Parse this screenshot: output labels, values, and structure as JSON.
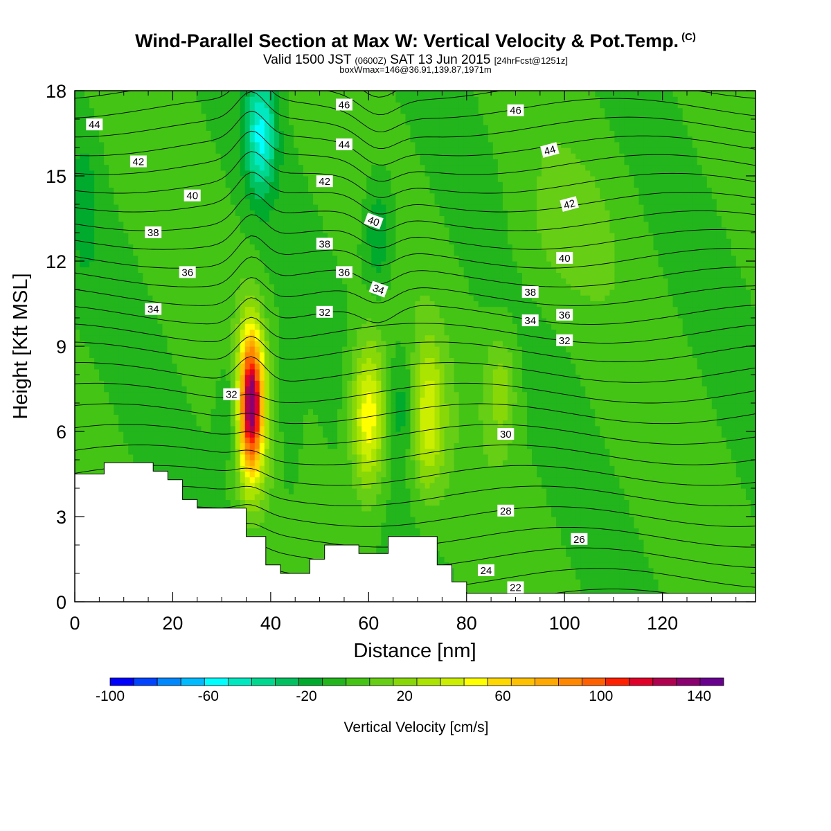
{
  "header": {
    "title": "Wind-Parallel Section at Max W: Vertical Velocity & Pot.Temp.",
    "copyright": "(C)",
    "valid_pre": "Valid 1500 JST",
    "valid_utc": "(0600Z)",
    "valid_date": "SAT 13 Jun 2015",
    "forecast": "[24hrFcst@1251z]",
    "boxwmax": "boxWmax=146@36.91,139.87,1971m"
  },
  "chart_data": {
    "type": "heatmap",
    "title": "Wind-Parallel Section at Max W: Vertical Velocity & Pot.Temp.",
    "xlabel": "Distance [nm]",
    "ylabel": "Height [Kft MSL]",
    "xlim": [
      0,
      139
    ],
    "ylim": [
      0,
      18
    ],
    "x_ticks": [
      "0",
      "20",
      "40",
      "60",
      "80",
      "100",
      "120"
    ],
    "y_ticks": [
      "0",
      "3",
      "6",
      "9",
      "12",
      "15",
      "18"
    ],
    "colorbar": {
      "label": "Vertical Velocity [cm/s]",
      "range": [
        -100,
        150
      ],
      "step": 10,
      "tick_labels": [
        "-100",
        "-60",
        "-20",
        "20",
        "60",
        "100",
        "140"
      ],
      "colors": [
        "#0000ff",
        "#0044ff",
        "#0088ff",
        "#00bbff",
        "#00ffff",
        "#00e8c0",
        "#00d890",
        "#00c060",
        "#00aa2c",
        "#22b51c",
        "#44c414",
        "#66ce14",
        "#88d808",
        "#aae400",
        "#ccee00",
        "#ffff00",
        "#ffd800",
        "#ffc000",
        "#ffa800",
        "#ff8800",
        "#ff6000",
        "#ff2000",
        "#e0002a",
        "#b00050",
        "#8a0070",
        "#6a0090"
      ]
    },
    "vertical_velocity_max": 146,
    "wmax_location": "36.91,139.87,1971m",
    "features": [
      {
        "name": "updraft",
        "x": 36,
        "z": 7.0,
        "w": 146
      },
      {
        "name": "updraft",
        "x": 60,
        "z": 6.5,
        "w": 60
      },
      {
        "name": "updraft",
        "x": 72,
        "z": 6.5,
        "w": 45
      },
      {
        "name": "updraft",
        "x": 87,
        "z": 7.5,
        "w": 25
      },
      {
        "name": "downdraft",
        "x": 38,
        "z": 16.5,
        "w": -50
      },
      {
        "name": "downdraft",
        "x": 62,
        "z": 13.0,
        "w": -25
      },
      {
        "name": "downdraft",
        "x": 67,
        "z": 7.0,
        "w": -20
      },
      {
        "name": "downdraft",
        "x": 32,
        "z": 7.0,
        "w": -15
      }
    ],
    "theta_contour_labels": [
      {
        "text": "44",
        "x": 4,
        "z": 16.8
      },
      {
        "text": "42",
        "x": 13,
        "z": 15.5
      },
      {
        "text": "40",
        "x": 24,
        "z": 14.3
      },
      {
        "text": "38",
        "x": 16,
        "z": 13.0
      },
      {
        "text": "36",
        "x": 23,
        "z": 11.6
      },
      {
        "text": "34",
        "x": 16,
        "z": 10.3
      },
      {
        "text": "32",
        "x": 32,
        "z": 7.3
      },
      {
        "text": "46",
        "x": 55,
        "z": 17.5
      },
      {
        "text": "44",
        "x": 55,
        "z": 16.1
      },
      {
        "text": "42",
        "x": 51,
        "z": 14.8
      },
      {
        "text": "40",
        "x": 61,
        "z": 13.4
      },
      {
        "text": "38",
        "x": 51,
        "z": 12.6
      },
      {
        "text": "36",
        "x": 55,
        "z": 11.6
      },
      {
        "text": "34",
        "x": 62,
        "z": 11.0
      },
      {
        "text": "32",
        "x": 51,
        "z": 10.2
      },
      {
        "text": "46",
        "x": 90,
        "z": 17.3
      },
      {
        "text": "44",
        "x": 97,
        "z": 15.9
      },
      {
        "text": "42",
        "x": 101,
        "z": 14.0
      },
      {
        "text": "40",
        "x": 100,
        "z": 12.1
      },
      {
        "text": "38",
        "x": 93,
        "z": 10.9
      },
      {
        "text": "36",
        "x": 100,
        "z": 10.1
      },
      {
        "text": "34",
        "x": 93,
        "z": 9.9
      },
      {
        "text": "32",
        "x": 100,
        "z": 9.2
      },
      {
        "text": "30",
        "x": 88,
        "z": 5.9
      },
      {
        "text": "28",
        "x": 88,
        "z": 3.2
      },
      {
        "text": "26",
        "x": 103,
        "z": 2.2
      },
      {
        "text": "24",
        "x": 84,
        "z": 1.1
      },
      {
        "text": "22",
        "x": 90,
        "z": 0.5
      }
    ],
    "terrain": [
      [
        0,
        4.5
      ],
      [
        6,
        4.5
      ],
      [
        6,
        4.9
      ],
      [
        16,
        4.9
      ],
      [
        16,
        4.6
      ],
      [
        19,
        4.6
      ],
      [
        19,
        4.3
      ],
      [
        22,
        4.3
      ],
      [
        22,
        3.6
      ],
      [
        25,
        3.6
      ],
      [
        25,
        3.3
      ],
      [
        35,
        3.3
      ],
      [
        35,
        2.3
      ],
      [
        39,
        2.3
      ],
      [
        39,
        1.3
      ],
      [
        42,
        1.3
      ],
      [
        42,
        1.0
      ],
      [
        48,
        1.0
      ],
      [
        48,
        1.5
      ],
      [
        51,
        1.5
      ],
      [
        51,
        2.0
      ],
      [
        58,
        2.0
      ],
      [
        58,
        1.7
      ],
      [
        64,
        1.7
      ],
      [
        64,
        2.3
      ],
      [
        74,
        2.3
      ],
      [
        74,
        1.3
      ],
      [
        77,
        1.3
      ],
      [
        77,
        0.7
      ],
      [
        80,
        0.7
      ],
      [
        80,
        0.3
      ],
      [
        139,
        0.3
      ]
    ]
  }
}
